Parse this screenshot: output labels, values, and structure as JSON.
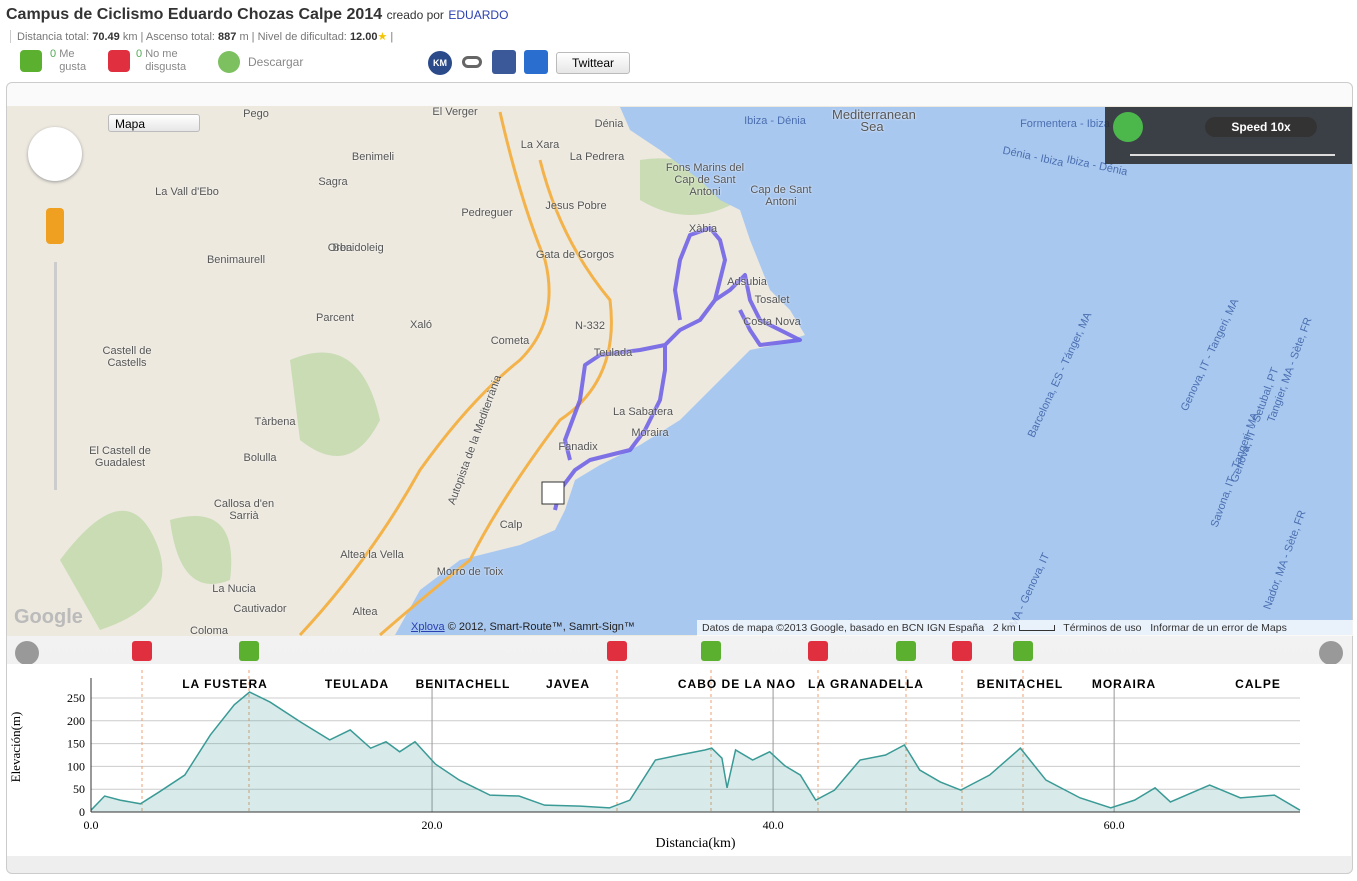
{
  "header": {
    "title": "Campus de Ciclismo Eduardo Chozas Calpe 2014",
    "created_by": "creado por",
    "author": "EDUARDO"
  },
  "stats": {
    "distance_label": "Distancia total:",
    "distance": "70.49",
    "distance_unit": "km",
    "ascent_label": "Ascenso total:",
    "ascent": "887",
    "ascent_unit": "m",
    "difficulty_label": "Nivel de dificultad:",
    "difficulty": "12.00"
  },
  "actions": {
    "likes": "0",
    "likes_label": "Me gusta",
    "dislikes": "0",
    "dislikes_label": "No me disgusta",
    "download": "Descargar",
    "km_badge": "KM",
    "tweet": "Twittear"
  },
  "map": {
    "type_select": "Mapa",
    "speed": "Speed 10x",
    "google": "Google",
    "xplova": "Xplova",
    "copyright": "© 2012, Smart-Route™, Samrt-Sign™",
    "map_data": "Datos de mapa ©2013 Google, basado en BCN IGN España",
    "scale": "2 km",
    "terms": "Términos de uso",
    "report": "Informar de un error de Maps",
    "labels": [
      "Pego",
      "El Verger",
      "Dénia",
      "La Xara",
      "La Pedrera",
      "Benimeli",
      "Sagra",
      "Jesus Pobre",
      "Pedreguer",
      "La Vall d'Ebo",
      "Benidoleig",
      "Orba",
      "Gata de Gorgos",
      "Benimaurell",
      "Xàbia",
      "Fons Marins del Cap de Sant Antoni",
      "Cap de Sant Antoni",
      "Mediterranean Sea",
      "Parcent",
      "Xaló",
      "Cometa",
      "N-332",
      "Castell de Castells",
      "Teulada",
      "Adsubia",
      "Tosalet",
      "Costa Nova",
      "La Sabatera",
      "Moraira",
      "Tàrbena",
      "Fanadix",
      "El Castell de Guadalest",
      "Bolulla",
      "Callosa d'en Sarrià",
      "Calp",
      "Altea la Vella",
      "Morro de Toix",
      "La Nucia",
      "Cautivador",
      "Altea",
      "Coloma",
      "Ibiza - Dénia",
      "Formentera - Ibiza",
      "Dénia - Ibiza",
      "Ibiza - Dénia",
      "Barcelona, ES - Tánger, MA",
      "Genova, IT - Tangeri, MA",
      "Tangier, MA - Sète, FR",
      "Genova, IT - Setubal, PT",
      "Savona, IT - Tangeri, MA",
      "Nador, MA - Sète, FR",
      "MA - Genova, IT",
      "Autopista de la Mediterrània"
    ]
  },
  "segments": [
    "LA FUSTERA",
    "TEULADA",
    "BENITACHELL",
    "JAVEA",
    "CABO DE LA NAO",
    "LA GRANADELLA",
    "BENITACHEL",
    "MORAIRA",
    "CALPE"
  ],
  "chart_data": {
    "type": "line",
    "x_label": "Distancia(km)",
    "y_label": "Elevación(m)",
    "x": [
      0,
      0.8,
      1.7,
      2.9,
      4.0,
      5.5,
      7.0,
      8.4,
      9.3,
      10.5,
      12.3,
      14.0,
      15.2,
      16.4,
      17.3,
      18.1,
      19.0,
      20.2,
      21.6,
      23.4,
      25.1,
      26.6,
      28.7,
      30.4,
      31.6,
      33.1,
      34.5,
      36.0,
      36.4,
      37.0,
      37.3,
      37.8,
      38.8,
      39.8,
      40.7,
      41.6,
      42.5,
      43.6,
      45.1,
      46.6,
      47.7,
      48.6,
      49.8,
      51.0,
      52.7,
      54.5,
      56.0,
      58.0,
      59.8,
      61.2,
      62.4,
      63.3,
      65.6,
      67.4,
      69.4,
      70.9
    ],
    "series": [
      {
        "name": "Elevación",
        "color": "#3a9a96",
        "values": [
          4,
          35,
          26,
          18,
          44,
          81,
          169,
          235,
          263,
          241,
          197,
          158,
          180,
          140,
          154,
          132,
          154,
          105,
          70,
          37,
          35,
          15,
          13,
          9,
          26,
          114,
          125,
          136,
          140,
          118,
          53,
          136,
          114,
          132,
          101,
          81,
          26,
          48,
          114,
          125,
          147,
          92,
          66,
          48,
          81,
          140,
          70,
          31,
          9,
          26,
          53,
          22,
          59,
          31,
          37,
          4
        ]
      }
    ],
    "xlim": [
      0,
      70.9
    ],
    "ylim": [
      0,
      285
    ],
    "xticks": [
      {
        "value": 0,
        "label": "0.0"
      },
      {
        "value": 20,
        "label": "20.0"
      },
      {
        "value": 40,
        "label": "40.0"
      },
      {
        "value": 60,
        "label": "60.0"
      }
    ],
    "yticks": [
      0,
      50,
      100,
      150,
      200,
      250
    ]
  }
}
